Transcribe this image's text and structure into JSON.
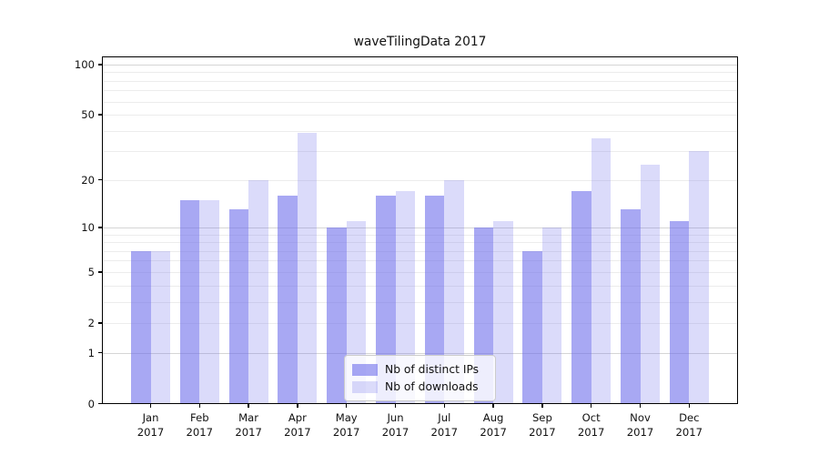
{
  "title": "waveTilingData 2017",
  "legend": {
    "items": [
      {
        "label": "Nb of distinct IPs",
        "color": "rgba(110,110,235,0.6)"
      },
      {
        "label": "Nb of downloads",
        "color": "rgba(110,110,235,0.25)"
      }
    ]
  },
  "x_axis": {
    "months": [
      "Jan",
      "Feb",
      "Mar",
      "Apr",
      "May",
      "Jun",
      "Jul",
      "Aug",
      "Sep",
      "Oct",
      "Nov",
      "Dec"
    ],
    "year": "2017"
  },
  "y_axis": {
    "tick_values": [
      100,
      50,
      20,
      10,
      5,
      2,
      1,
      0
    ],
    "tick_labels": [
      "100",
      "50",
      "20",
      "10",
      "5",
      "2",
      "1",
      "0"
    ]
  },
  "chart_data": {
    "type": "bar",
    "title": "waveTilingData 2017",
    "categories": [
      "Jan 2017",
      "Feb 2017",
      "Mar 2017",
      "Apr 2017",
      "May 2017",
      "Jun 2017",
      "Jul 2017",
      "Aug 2017",
      "Sep 2017",
      "Oct 2017",
      "Nov 2017",
      "Dec 2017"
    ],
    "series": [
      {
        "name": "Nb of distinct IPs",
        "color": "rgba(110,110,235,0.6)",
        "values": [
          7,
          15,
          13,
          16,
          10,
          16,
          16,
          10,
          7,
          17,
          13,
          11
        ]
      },
      {
        "name": "Nb of downloads",
        "color": "rgba(110,110,235,0.25)",
        "values": [
          7,
          15,
          20,
          39,
          11,
          17,
          20,
          11,
          10,
          36,
          25,
          30
        ]
      }
    ],
    "xlabel": "",
    "ylabel": "",
    "yscale": "symlog-log1p",
    "ylim": [
      0,
      100
    ],
    "yticks": [
      0,
      1,
      2,
      5,
      10,
      20,
      50,
      100
    ],
    "minor_gridlines": [
      2,
      3,
      4,
      5,
      6,
      7,
      8,
      9,
      20,
      30,
      40,
      50,
      60,
      70,
      80,
      90
    ],
    "major_gridlines": [
      1,
      10,
      100
    ],
    "grid": "on",
    "legend_position": "lower center"
  }
}
